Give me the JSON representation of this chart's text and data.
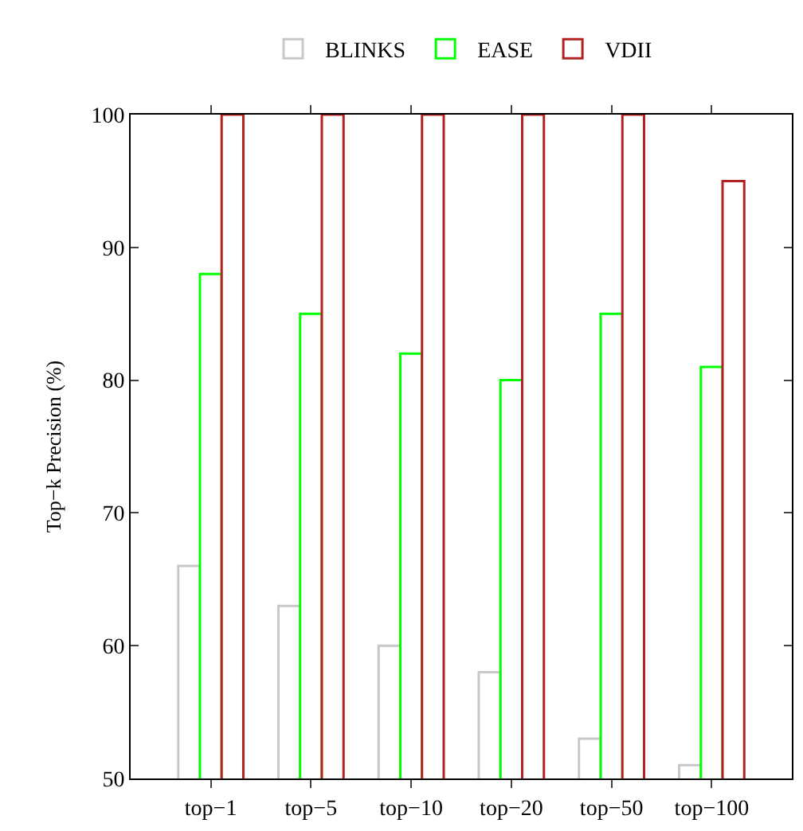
{
  "chart_data": {
    "type": "bar",
    "ylabel": "Top−k Precision (%)",
    "categories": [
      "top−1",
      "top−5",
      "top−10",
      "top−20",
      "top−50",
      "top−100"
    ],
    "series": [
      {
        "name": "BLINKS",
        "color": "#c8c8c8",
        "values": [
          66,
          63,
          60,
          58,
          53,
          51
        ]
      },
      {
        "name": "EASE",
        "color": "#00ff00",
        "values": [
          88,
          85,
          82,
          80,
          85,
          81
        ]
      },
      {
        "name": "VDII",
        "color": "#b22222",
        "values": [
          100,
          100,
          100,
          100,
          100,
          95
        ]
      }
    ],
    "ylim": [
      50,
      100
    ],
    "yticks": [
      50,
      60,
      70,
      80,
      90,
      100
    ],
    "legend": "top"
  }
}
